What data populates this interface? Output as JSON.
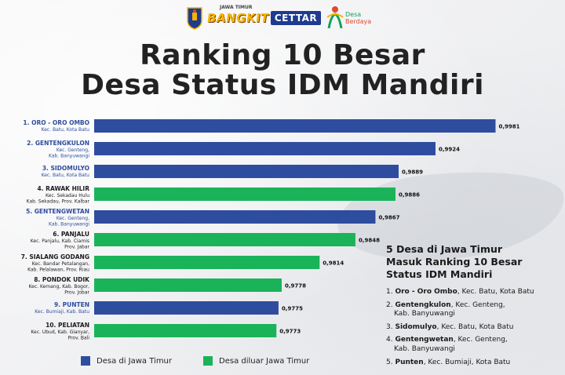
{
  "logos": {
    "jatim": "east-java-emblem",
    "bangkit_small": "JAWA TIMUR",
    "bangkit_main": "BANGKIT",
    "cettar": "CETTAR",
    "desa_line1": "Desa",
    "desa_line2": "Berdaya"
  },
  "title_line1": "Ranking 10 Besar",
  "title_line2": "Desa Status IDM Mandiri",
  "colors": {
    "jawa_timur": "#2f4d9e",
    "luar_jawa_timur": "#1ab35a"
  },
  "legend": {
    "jawa_timur": "Desa di Jawa Timur",
    "luar_jawa_timur": "Desa diluar Jawa Timur"
  },
  "chart_data": {
    "type": "bar",
    "orientation": "horizontal",
    "title": "Ranking 10 Besar Desa Status IDM Mandiri",
    "xlim": [
      0.96,
      1.0
    ],
    "grid": false,
    "legend_position": "bottom-left",
    "categories": [
      "1. ORO - ORO OMBO",
      "2. GENTENGKULON",
      "3. SIDOMULYO",
      "4. RAWAK HILIR",
      "5. GENTENGWETAN",
      "6. PANJALU",
      "7. SIALANG GODANG",
      "8. PONDOK UDIK",
      "9. PUNTEN",
      "10. PELIATAN"
    ],
    "subtitles": [
      [
        "Kec. Batu, Kota Batu"
      ],
      [
        "Kec. Genteng,",
        "Kab. Banyuwangi"
      ],
      [
        "Kec. Batu, Kota Batu"
      ],
      [
        "Kec. Sekadau Hulu",
        "Kab. Sekadau, Prov. Kalbar"
      ],
      [
        "Kec. Genteng,",
        "Kab. Banyuwangi"
      ],
      [
        "Kec. Panjalu, Kab. Ciamis",
        "Prov. Jabar"
      ],
      [
        "Kec. Bandar Petalangan,",
        "Kab. Pelalawan, Prov. Riau"
      ],
      [
        "Kec. Kemang, Kab. Bogor,",
        "Prov. Jobar"
      ],
      [
        "Kec. Bumiaji, Kab. Batu"
      ],
      [
        "Kec. Ubud, Kab. Gianyar,",
        "Prov. Bali"
      ]
    ],
    "values": [
      0.9981,
      0.9924,
      0.9889,
      0.9886,
      0.9867,
      0.9848,
      0.9814,
      0.9778,
      0.9775,
      0.9773
    ],
    "value_labels": [
      "0,9981",
      "0,9924",
      "0,9889",
      "0,9886",
      "0,9867",
      "0,9848",
      "0,9814",
      "0,9778",
      "0,9775",
      "0,9773"
    ],
    "group": [
      "jawa_timur",
      "jawa_timur",
      "jawa_timur",
      "luar_jawa_timur",
      "jawa_timur",
      "luar_jawa_timur",
      "luar_jawa_timur",
      "luar_jawa_timur",
      "jawa_timur",
      "luar_jawa_timur"
    ]
  },
  "side_panel": {
    "title_lines": [
      "5 Desa di Jawa Timur",
      "Masuk Ranking 10 Besar",
      "Status IDM Mandiri"
    ],
    "items": [
      {
        "num": "1.",
        "name": "Oro - Oro Ombo",
        "rest": ", Kec. Batu, Kota Batu",
        "line2": ""
      },
      {
        "num": "2.",
        "name": "Gentengkulon",
        "rest": ", Kec. Genteng,",
        "line2": "Kab. Banyuwangi"
      },
      {
        "num": "3.",
        "name": "Sidomulyo",
        "rest": ", Kec. Batu, Kota Batu",
        "line2": ""
      },
      {
        "num": "4.",
        "name": "Gentengwetan",
        "rest": ", Kec. Genteng,",
        "line2": "Kab. Banyuwangi"
      },
      {
        "num": "5.",
        "name": "Punten",
        "rest": ", Kec. Bumiaji, Kota Batu",
        "line2": ""
      }
    ]
  }
}
